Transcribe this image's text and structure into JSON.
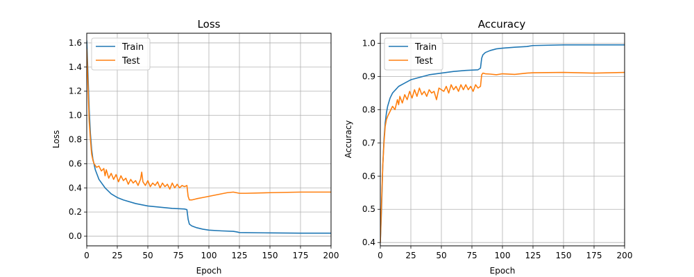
{
  "colors": {
    "train": "#1f77b4",
    "test": "#ff7f0e",
    "grid": "#b0b0b0"
  },
  "chart_data": [
    {
      "type": "line",
      "title": "Loss",
      "xlabel": "Epoch",
      "ylabel": "Loss",
      "xlim": [
        0,
        200
      ],
      "ylim": [
        -0.08,
        1.68
      ],
      "xticks": [
        0,
        25,
        50,
        75,
        100,
        125,
        150,
        175,
        200
      ],
      "xtick_labels": [
        "0",
        "25",
        "50",
        "75",
        "100",
        "125",
        "150",
        "175",
        "200"
      ],
      "yticks": [
        0.0,
        0.2,
        0.4,
        0.6,
        0.8,
        1.0,
        1.2,
        1.4,
        1.6
      ],
      "ytick_labels": [
        "0.0",
        "0.2",
        "0.4",
        "0.6",
        "0.8",
        "1.0",
        "1.2",
        "1.4",
        "1.6"
      ],
      "grid": true,
      "legend": "top-left",
      "series": [
        {
          "name": "Train",
          "x": [
            0,
            1,
            2,
            3,
            4,
            5,
            7,
            10,
            15,
            20,
            25,
            30,
            40,
            50,
            60,
            70,
            80,
            82,
            83,
            84,
            86,
            90,
            95,
            100,
            110,
            120,
            123,
            125,
            150,
            175,
            200
          ],
          "y": [
            1.62,
            1.35,
            1.05,
            0.85,
            0.72,
            0.64,
            0.55,
            0.47,
            0.4,
            0.35,
            0.32,
            0.3,
            0.27,
            0.25,
            0.24,
            0.23,
            0.225,
            0.22,
            0.14,
            0.1,
            0.085,
            0.07,
            0.058,
            0.05,
            0.044,
            0.04,
            0.035,
            0.03,
            0.027,
            0.025,
            0.025
          ]
        },
        {
          "name": "Test",
          "x": [
            0,
            1,
            2,
            3,
            4,
            5,
            6,
            8,
            10,
            12,
            14,
            15,
            16,
            18,
            20,
            22,
            24,
            26,
            28,
            30,
            32,
            34,
            36,
            38,
            40,
            42,
            44,
            45,
            46,
            48,
            50,
            52,
            54,
            56,
            58,
            60,
            62,
            64,
            66,
            68,
            70,
            72,
            74,
            76,
            78,
            80,
            82,
            83,
            84,
            86,
            90,
            95,
            100,
            105,
            110,
            115,
            120,
            125,
            130,
            150,
            175,
            200
          ],
          "y": [
            1.55,
            1.25,
            0.95,
            0.8,
            0.68,
            0.63,
            0.6,
            0.57,
            0.58,
            0.54,
            0.56,
            0.5,
            0.55,
            0.48,
            0.52,
            0.47,
            0.51,
            0.45,
            0.5,
            0.46,
            0.48,
            0.43,
            0.47,
            0.44,
            0.46,
            0.42,
            0.47,
            0.53,
            0.45,
            0.42,
            0.46,
            0.41,
            0.44,
            0.42,
            0.45,
            0.4,
            0.44,
            0.41,
            0.43,
            0.39,
            0.44,
            0.4,
            0.43,
            0.4,
            0.42,
            0.41,
            0.42,
            0.33,
            0.3,
            0.3,
            0.31,
            0.32,
            0.33,
            0.34,
            0.35,
            0.36,
            0.365,
            0.355,
            0.355,
            0.36,
            0.365,
            0.365
          ]
        }
      ]
    },
    {
      "type": "line",
      "title": "Accuracy",
      "xlabel": "Epoch",
      "ylabel": "Accuracy",
      "xlim": [
        0,
        200
      ],
      "ylim": [
        0.39,
        1.03
      ],
      "xticks": [
        0,
        25,
        50,
        75,
        100,
        125,
        150,
        175,
        200
      ],
      "xtick_labels": [
        "0",
        "25",
        "50",
        "75",
        "100",
        "125",
        "150",
        "175",
        "200"
      ],
      "yticks": [
        0.4,
        0.5,
        0.6,
        0.7,
        0.8,
        0.9,
        1.0
      ],
      "ytick_labels": [
        "0.4",
        "0.5",
        "0.6",
        "0.7",
        "0.8",
        "0.9",
        "1.0"
      ],
      "grid": true,
      "legend": "top-left",
      "series": [
        {
          "name": "Train",
          "x": [
            0,
            1,
            2,
            3,
            4,
            5,
            6,
            8,
            10,
            15,
            20,
            25,
            30,
            40,
            50,
            60,
            70,
            80,
            82,
            83,
            84,
            86,
            90,
            95,
            100,
            110,
            120,
            125,
            150,
            175,
            200
          ],
          "y": [
            0.4,
            0.5,
            0.63,
            0.71,
            0.76,
            0.79,
            0.81,
            0.835,
            0.85,
            0.87,
            0.88,
            0.89,
            0.895,
            0.905,
            0.91,
            0.915,
            0.918,
            0.92,
            0.925,
            0.955,
            0.965,
            0.972,
            0.978,
            0.983,
            0.985,
            0.988,
            0.99,
            0.993,
            0.995,
            0.995,
            0.995
          ]
        },
        {
          "name": "Test",
          "x": [
            0,
            1,
            2,
            3,
            4,
            5,
            6,
            8,
            10,
            12,
            14,
            15,
            16,
            18,
            20,
            22,
            24,
            26,
            28,
            30,
            32,
            34,
            36,
            38,
            40,
            42,
            44,
            46,
            48,
            50,
            52,
            54,
            56,
            58,
            60,
            62,
            64,
            66,
            68,
            70,
            72,
            74,
            76,
            78,
            80,
            82,
            83,
            84,
            86,
            90,
            95,
            100,
            110,
            120,
            125,
            150,
            175,
            200
          ],
          "y": [
            0.4,
            0.52,
            0.63,
            0.7,
            0.75,
            0.77,
            0.78,
            0.795,
            0.81,
            0.8,
            0.83,
            0.815,
            0.84,
            0.82,
            0.845,
            0.83,
            0.855,
            0.835,
            0.86,
            0.84,
            0.865,
            0.845,
            0.855,
            0.84,
            0.86,
            0.85,
            0.855,
            0.83,
            0.865,
            0.86,
            0.855,
            0.87,
            0.85,
            0.875,
            0.86,
            0.87,
            0.855,
            0.875,
            0.86,
            0.875,
            0.86,
            0.87,
            0.855,
            0.875,
            0.865,
            0.87,
            0.905,
            0.91,
            0.908,
            0.907,
            0.905,
            0.908,
            0.906,
            0.91,
            0.911,
            0.912,
            0.91,
            0.912
          ]
        }
      ]
    }
  ]
}
